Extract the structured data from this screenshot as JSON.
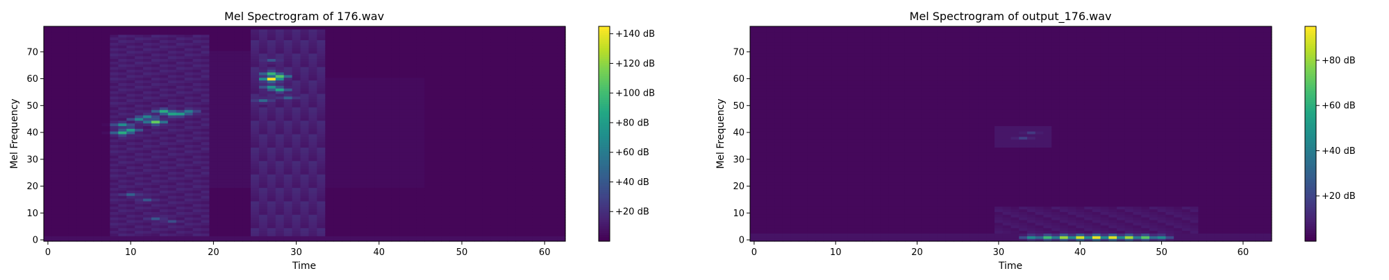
{
  "chart_data": [
    {
      "type": "heatmap",
      "title": "Mel Spectrogram of 176.wav",
      "xlabel": "Time",
      "ylabel": "Mel Frequency",
      "xlim": [
        -0.5,
        62.5
      ],
      "ylim": [
        -0.5,
        79.5
      ],
      "xticks": [
        0,
        10,
        20,
        30,
        40,
        50,
        60
      ],
      "yticks": [
        0,
        10,
        20,
        30,
        40,
        50,
        60,
        70
      ],
      "colormap": "viridis",
      "colorbar": {
        "min": 0,
        "max": 145,
        "ticks": [
          20,
          40,
          60,
          80,
          100,
          120,
          140
        ],
        "tick_format": "+{v} dB"
      },
      "hotspots": [
        {
          "t": 27,
          "f": 60,
          "db": 145
        },
        {
          "t": 28,
          "f": 61,
          "db": 105
        },
        {
          "t": 27,
          "f": 62,
          "db": 95
        },
        {
          "t": 28,
          "f": 56,
          "db": 85
        },
        {
          "t": 27,
          "f": 57,
          "db": 75
        },
        {
          "t": 13,
          "f": 44,
          "db": 110
        },
        {
          "t": 14,
          "f": 48,
          "db": 90
        },
        {
          "t": 15,
          "f": 47,
          "db": 85
        },
        {
          "t": 16,
          "f": 47,
          "db": 80
        },
        {
          "t": 9,
          "f": 40,
          "db": 90
        },
        {
          "t": 10,
          "f": 41,
          "db": 80
        },
        {
          "t": 9,
          "f": 43,
          "db": 70
        },
        {
          "t": 11,
          "f": 45,
          "db": 65
        },
        {
          "t": 12,
          "f": 46,
          "db": 65
        },
        {
          "t": 17,
          "f": 48,
          "db": 60
        },
        {
          "t": 10,
          "f": 17,
          "db": 45
        },
        {
          "t": 12,
          "f": 15,
          "db": 40
        },
        {
          "t": 13,
          "f": 8,
          "db": 40
        },
        {
          "t": 15,
          "f": 7,
          "db": 35
        },
        {
          "t": 26,
          "f": 52,
          "db": 50
        },
        {
          "t": 29,
          "f": 53,
          "db": 45
        },
        {
          "t": 27,
          "f": 67,
          "db": 40
        }
      ]
    },
    {
      "type": "heatmap",
      "title": "Mel Spectrogram of output_176.wav",
      "xlabel": "Time",
      "ylabel": "Mel Frequency",
      "xlim": [
        -0.5,
        63.5
      ],
      "ylim": [
        -0.5,
        79.5
      ],
      "xticks": [
        0,
        10,
        20,
        30,
        40,
        50,
        60
      ],
      "yticks": [
        0,
        10,
        20,
        30,
        40,
        50,
        60,
        70
      ],
      "colormap": "viridis",
      "colorbar": {
        "min": 0,
        "max": 95,
        "ticks": [
          20,
          40,
          60,
          80
        ],
        "tick_format": "+{v} dB"
      },
      "hotspots": [
        {
          "t": 40,
          "f": 1,
          "db": 88
        },
        {
          "t": 42,
          "f": 1,
          "db": 92
        },
        {
          "t": 44,
          "f": 1,
          "db": 90
        },
        {
          "t": 38,
          "f": 1,
          "db": 80
        },
        {
          "t": 46,
          "f": 1,
          "db": 82
        },
        {
          "t": 36,
          "f": 1,
          "db": 65
        },
        {
          "t": 48,
          "f": 1,
          "db": 70
        },
        {
          "t": 34,
          "f": 1,
          "db": 45
        },
        {
          "t": 50,
          "f": 1,
          "db": 45
        },
        {
          "t": 33,
          "f": 38,
          "db": 18
        },
        {
          "t": 34,
          "f": 40,
          "db": 16
        }
      ]
    }
  ]
}
